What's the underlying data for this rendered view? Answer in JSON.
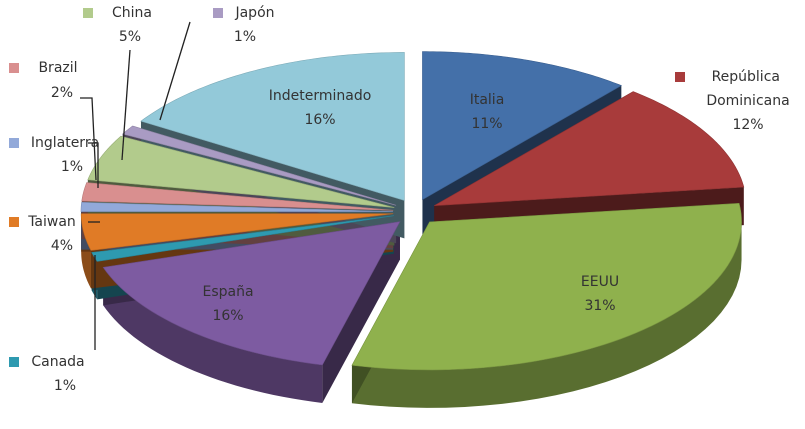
{
  "chart_data": {
    "type": "pie",
    "categories": [
      "Italia",
      "República Dominicana",
      "EEUU",
      "España",
      "Canada",
      "Taiwan",
      "Inglaterra",
      "Brazil",
      "China",
      "Japón",
      "Indeterminado"
    ],
    "values": [
      11,
      12,
      31,
      16,
      1,
      4,
      1,
      2,
      5,
      1,
      16
    ],
    "value_labels": [
      "11%",
      "12%",
      "31%",
      "16%",
      "1%",
      "4%",
      "1%",
      "2%",
      "5%",
      "1%",
      "16%"
    ],
    "colors": [
      "#4470a9",
      "#a83b3b",
      "#8fb14d",
      "#7d5ba1",
      "#2e9ab0",
      "#e07b26",
      "#92a9d9",
      "#d98f8f",
      "#b2cb8c",
      "#a99bc3",
      "#93c9d9"
    ]
  }
}
